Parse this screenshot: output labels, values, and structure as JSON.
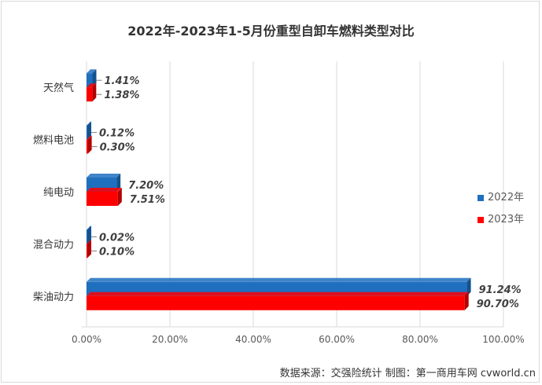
{
  "title": "2022年-2023年1-5月份重型自卸车燃料类型对比",
  "source_note": "数据来源：交强险统计    制图：第一商用车网 cvworld.cn",
  "colors": {
    "series_2022": "#1f6fbf",
    "series_2023": "#ff0000"
  },
  "chart_data": {
    "type": "bar",
    "orientation": "horizontal",
    "categories": [
      "天然气",
      "燃料电池",
      "纯电动",
      "混合动力",
      "柴油动力"
    ],
    "series": [
      {
        "name": "2022年",
        "values": [
          1.41,
          0.12,
          7.2,
          0.02,
          91.24
        ],
        "labels": [
          "1.41%",
          "0.12%",
          "7.20%",
          "0.02%",
          "91.24%"
        ]
      },
      {
        "name": "2023年",
        "values": [
          1.38,
          0.3,
          7.51,
          0.1,
          90.7
        ],
        "labels": [
          "1.38%",
          "0.30%",
          "7.51%",
          "0.10%",
          "90.70%"
        ]
      }
    ],
    "x_ticks": [
      "0.00%",
      "20.00%",
      "40.00%",
      "60.00%",
      "80.00%",
      "100.00%"
    ],
    "xlim": [
      0,
      100
    ],
    "grid": true,
    "legend": "right"
  }
}
